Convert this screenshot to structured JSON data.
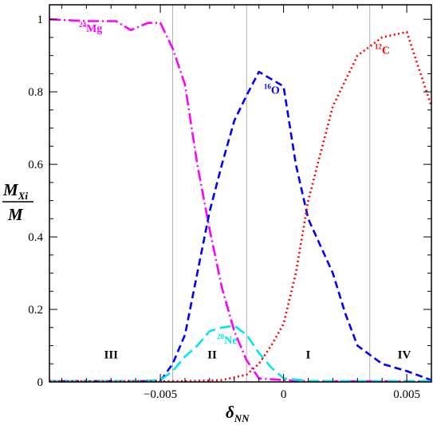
{
  "chart_data": {
    "type": "line",
    "xlabel": {
      "main": "δ",
      "sub": "NN"
    },
    "ylabel": {
      "num_main": "M",
      "num_sub": "Xi",
      "den": "M"
    },
    "xlim": [
      -0.0095,
      0.006
    ],
    "ylim": [
      0,
      1.04
    ],
    "xticks": [
      {
        "value": -0.005,
        "label": "−0.005"
      },
      {
        "value": 0,
        "label": "0"
      },
      {
        "value": 0.005,
        "label": "0.005"
      }
    ],
    "yticks": [
      {
        "value": 0,
        "label": "0"
      },
      {
        "value": 0.2,
        "label": "0.2"
      },
      {
        "value": 0.4,
        "label": "0.4"
      },
      {
        "value": 0.6,
        "label": "0.6"
      },
      {
        "value": 0.8,
        "label": "0.8"
      },
      {
        "value": 1,
        "label": "1"
      }
    ],
    "vlines": [
      -0.0045,
      -0.0015,
      0.0035
    ],
    "region_labels": [
      {
        "text": "III",
        "x": -0.007,
        "y": 0.065
      },
      {
        "text": "II",
        "x": -0.0029,
        "y": 0.065
      },
      {
        "text": "I",
        "x": 0.001,
        "y": 0.065
      },
      {
        "text": "IV",
        "x": 0.0049,
        "y": 0.065
      }
    ],
    "series": [
      {
        "name": "Mg",
        "isotope": "24",
        "color": "#ff00ff",
        "style": "dashdot",
        "label_pos": {
          "x": -0.0083,
          "y": 0.965
        },
        "x": [
          -0.0095,
          -0.008,
          -0.0068,
          -0.0062,
          -0.0055,
          -0.005,
          -0.0045,
          -0.004,
          -0.0035,
          -0.003,
          -0.0025,
          -0.002,
          -0.0015,
          -0.001,
          0,
          0.001,
          0.002,
          0.003,
          0.004,
          0.005,
          0.006
        ],
        "y": [
          1.0,
          0.995,
          0.995,
          0.97,
          0.99,
          0.99,
          0.92,
          0.82,
          0.6,
          0.42,
          0.26,
          0.14,
          0.06,
          0.01,
          0.005,
          0.002,
          0.002,
          0.002,
          0.002,
          0.002,
          0.002
        ]
      },
      {
        "name": "O",
        "isotope": "16",
        "color": "#0000ff",
        "style": "dashed",
        "label_pos": {
          "x": -0.0008,
          "y": 0.795
        },
        "x": [
          -0.0095,
          -0.006,
          -0.005,
          -0.0045,
          -0.004,
          -0.0035,
          -0.003,
          -0.0025,
          -0.002,
          -0.0015,
          -0.001,
          0,
          0.0005,
          0.001,
          0.002,
          0.0025,
          0.003,
          0.004,
          0.005,
          0.006
        ],
        "y": [
          0.002,
          0.002,
          0.002,
          0.05,
          0.13,
          0.3,
          0.47,
          0.6,
          0.72,
          0.79,
          0.855,
          0.815,
          0.6,
          0.45,
          0.3,
          0.19,
          0.1,
          0.05,
          0.03,
          0.005
        ]
      },
      {
        "name": "Ne",
        "isotope": "20",
        "color": "#00e5ee",
        "style": "longdash",
        "label_pos": {
          "x": -0.0027,
          "y": 0.105
        },
        "x": [
          -0.0095,
          -0.006,
          -0.005,
          -0.0045,
          -0.004,
          -0.0035,
          -0.003,
          -0.0025,
          -0.002,
          -0.0015,
          -0.001,
          -0.0005,
          0,
          0.001,
          0.002,
          0.003,
          0.004,
          0.005,
          0.006
        ],
        "y": [
          0.002,
          0.002,
          0.005,
          0.03,
          0.07,
          0.1,
          0.14,
          0.15,
          0.155,
          0.13,
          0.08,
          0.04,
          0.01,
          0.003,
          0.002,
          0.002,
          0.002,
          0.002,
          0.002
        ]
      },
      {
        "name": "C",
        "isotope": "12",
        "color": "#ff0000",
        "style": "dotted",
        "label_pos": {
          "x": 0.0037,
          "y": 0.905
        },
        "x": [
          -0.0095,
          -0.004,
          -0.0025,
          -0.0015,
          -0.001,
          -0.0005,
          0,
          0.0005,
          0.001,
          0.0015,
          0.002,
          0.003,
          0.004,
          0.005,
          0.006
        ],
        "y": [
          0.002,
          0.002,
          0.005,
          0.02,
          0.05,
          0.1,
          0.16,
          0.3,
          0.5,
          0.63,
          0.76,
          0.9,
          0.95,
          0.965,
          0.76
        ]
      }
    ]
  }
}
